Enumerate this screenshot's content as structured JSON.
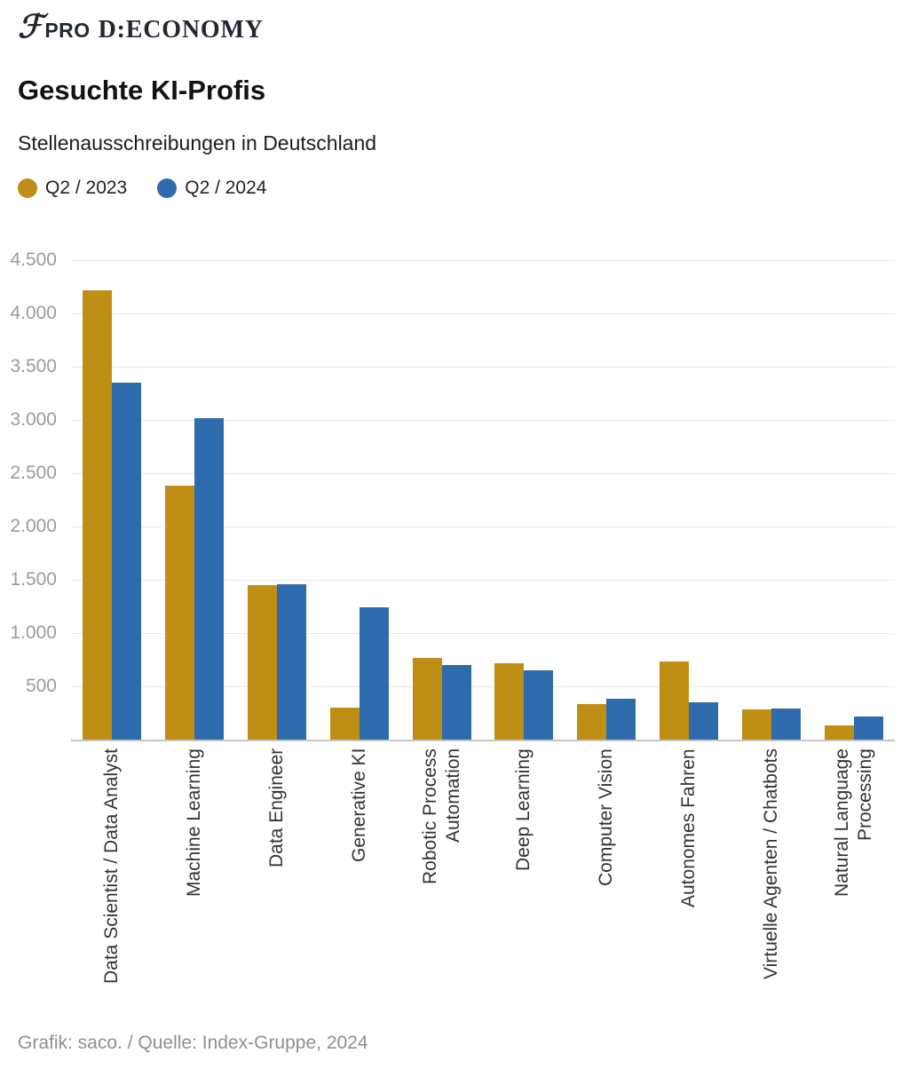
{
  "header": {
    "logo_f": "ℱ",
    "logo_pro": "PRO",
    "logo_brand": "D:ECONOMY"
  },
  "title": "Gesuchte KI-Profis",
  "subtitle": "Stellenausschreibungen in Deutschland",
  "legend": [
    {
      "label": "Q2 / 2023",
      "color": "#BE8E15"
    },
    {
      "label": "Q2 / 2024",
      "color": "#2E6BAC"
    }
  ],
  "footer": "Grafik: saco. / Quelle: Index-Gruppe, 2024",
  "chart_data": {
    "type": "bar",
    "title": "Gesuchte KI-Profis",
    "subtitle": "Stellenausschreibungen in Deutschland",
    "categories": [
      [
        "Data Scientist / Data Analyst"
      ],
      [
        "Machine Learning"
      ],
      [
        "Data Engineer"
      ],
      [
        "Generative KI"
      ],
      [
        "Robotic Process",
        "Automation"
      ],
      [
        "Deep Learning"
      ],
      [
        "Computer Vision"
      ],
      [
        "Autonomes Fahren"
      ],
      [
        "Virtuelle Agenten / Chatbots"
      ],
      [
        "Natural Language",
        "Processing"
      ]
    ],
    "series": [
      {
        "name": "Q2 / 2023",
        "color": "#BE8E15",
        "values": [
          4220,
          2380,
          1450,
          300,
          770,
          720,
          330,
          730,
          280,
          130
        ]
      },
      {
        "name": "Q2 / 2024",
        "color": "#2E6BAC",
        "values": [
          3350,
          3020,
          1460,
          1240,
          700,
          650,
          380,
          350,
          295,
          220
        ]
      }
    ],
    "xlabel": "",
    "ylabel": "",
    "ylim": [
      0,
      4500
    ],
    "yticks": [
      500,
      1000,
      1500,
      2000,
      2500,
      3000,
      3500,
      4000,
      4500
    ],
    "ytick_labels": [
      "500",
      "1.000",
      "1.500",
      "2.000",
      "2.500",
      "3.000",
      "3.500",
      "4.000",
      "4.500"
    ],
    "grid": true,
    "legend_position": "top-left",
    "source": "Grafik: saco. / Quelle: Index-Gruppe, 2024"
  }
}
